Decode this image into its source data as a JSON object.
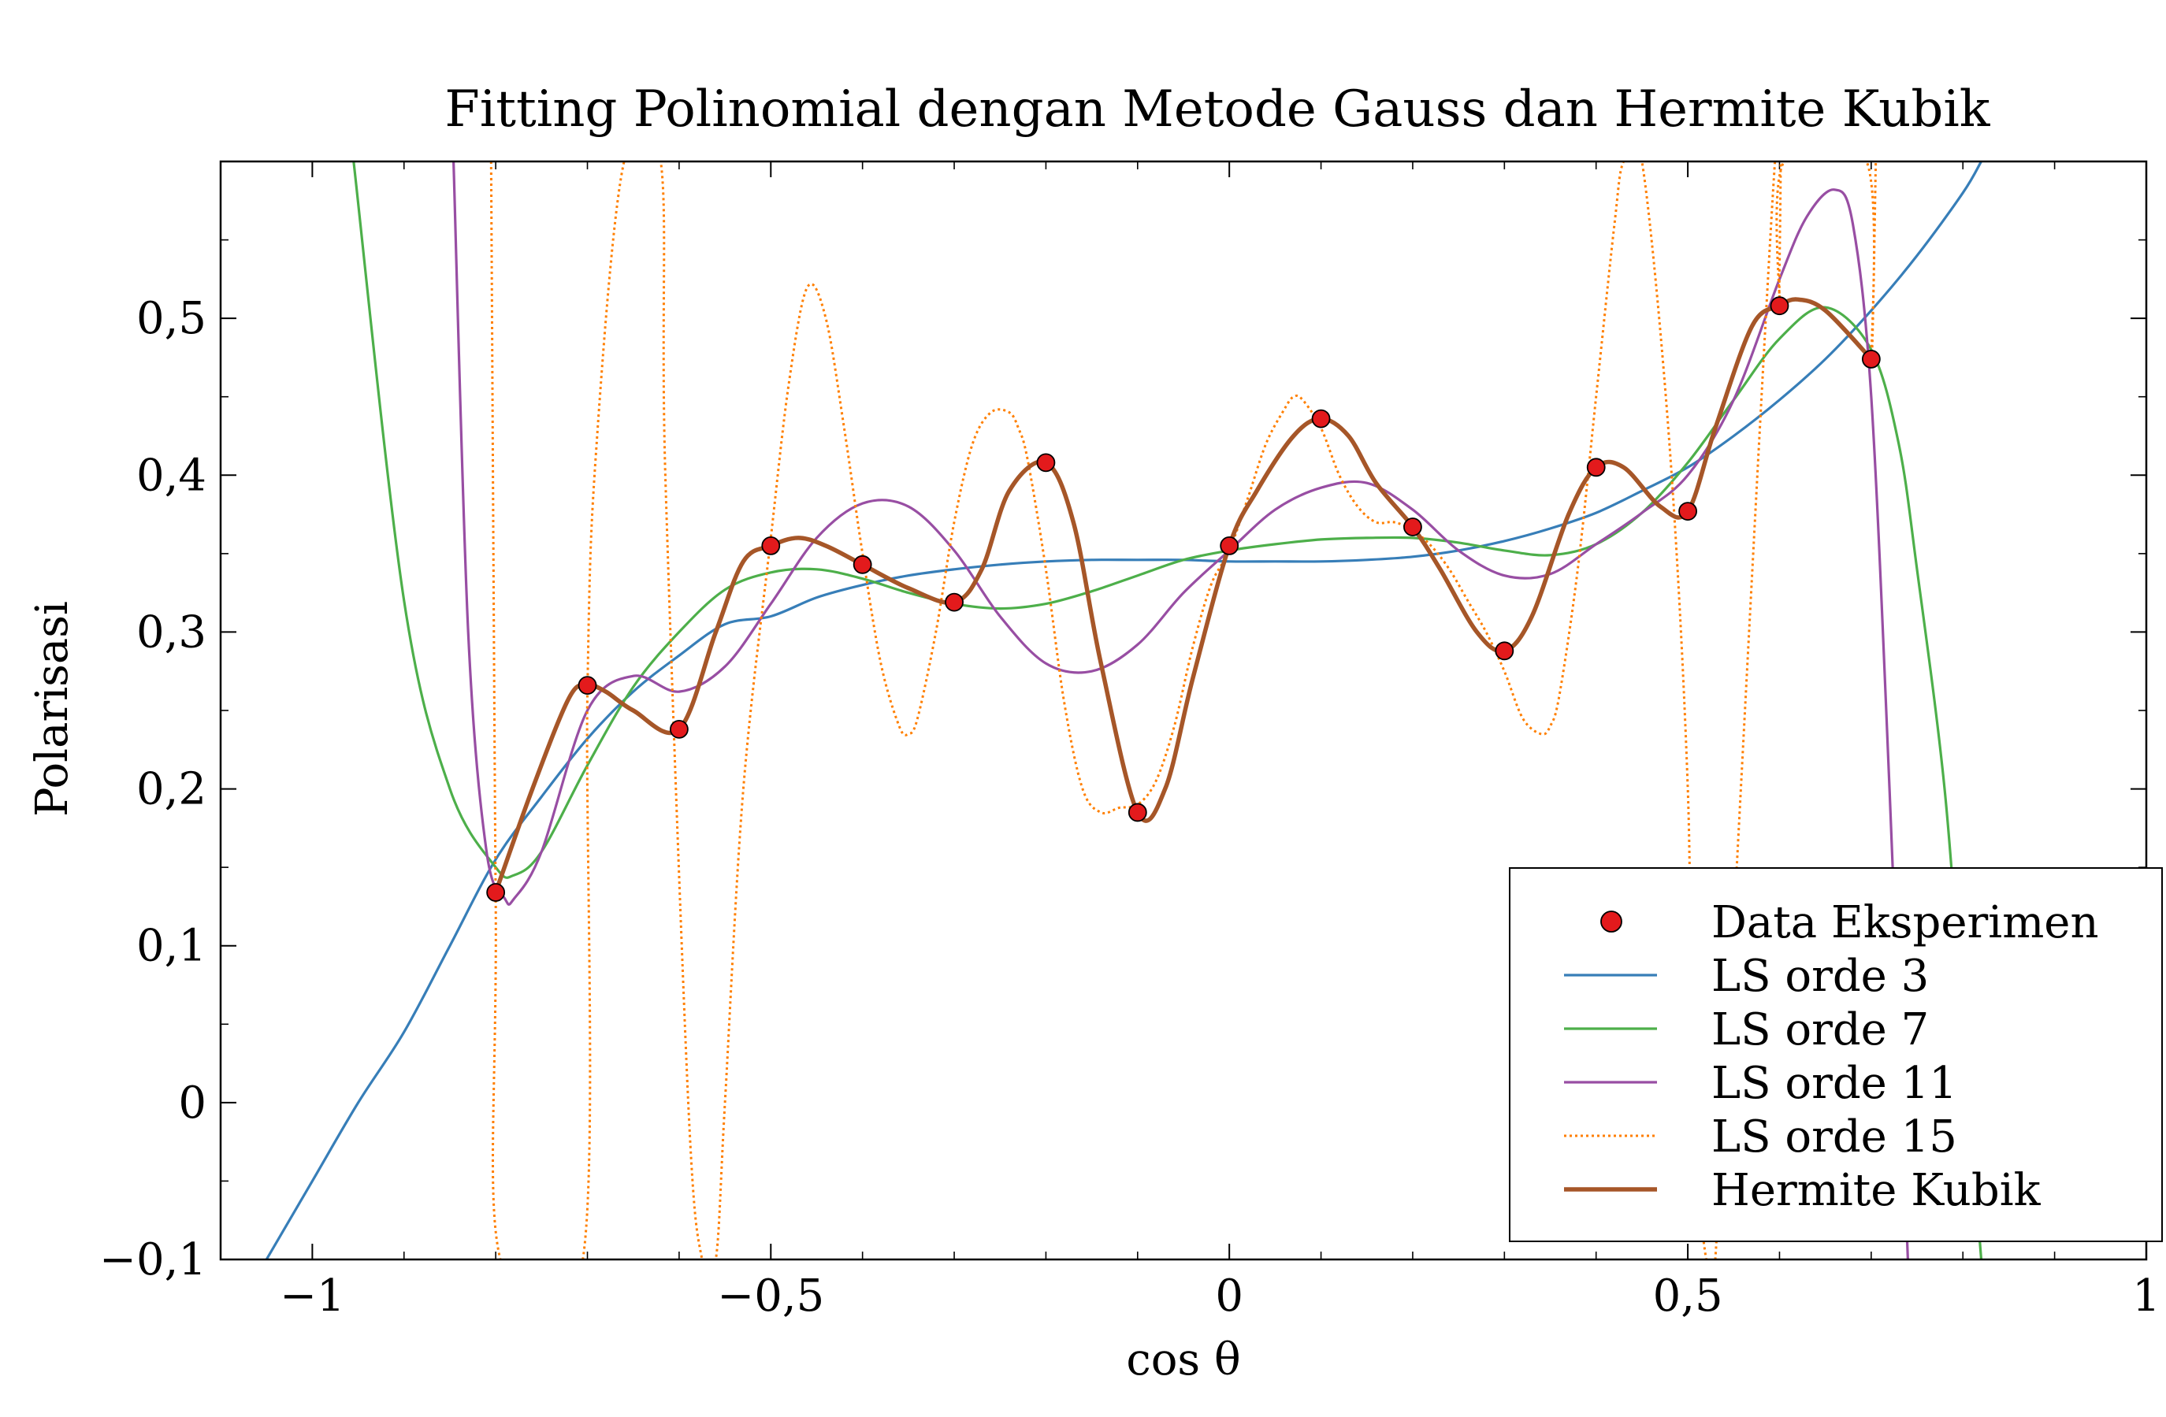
{
  "chart_data": {
    "type": "line",
    "title": "Fitting Polinomial dengan Metode Gauss dan Hermite Kubik",
    "xlabel": "cos θ",
    "ylabel": "Polarisasi",
    "xlim": [
      -1.1,
      1.0
    ],
    "ylim": [
      -0.1,
      0.6
    ],
    "xticks": [
      -1,
      -0.5,
      0,
      0.5,
      1
    ],
    "xtick_labels": [
      "−1",
      "−0,5",
      "0",
      "0,5",
      "1"
    ],
    "yticks": [
      -0.1,
      0,
      0.1,
      0.2,
      0.3,
      0.4,
      0.5
    ],
    "ytick_labels": [
      "−0,1",
      "0",
      "0,1",
      "0,2",
      "0,3",
      "0,4",
      "0,5"
    ],
    "grid": false,
    "legend_position": "lower-right",
    "data_points": {
      "name": "Data Eksperimen",
      "color": "#e31a1c",
      "x": [
        -0.8,
        -0.7,
        -0.6,
        -0.5,
        -0.4,
        -0.3,
        -0.2,
        -0.1,
        0.0,
        0.1,
        0.2,
        0.3,
        0.4,
        0.5,
        0.6,
        0.7
      ],
      "y": [
        0.134,
        0.266,
        0.238,
        0.355,
        0.343,
        0.319,
        0.408,
        0.185,
        0.355,
        0.436,
        0.367,
        0.288,
        0.405,
        0.377,
        0.508,
        0.474
      ]
    },
    "series": [
      {
        "name": "LS orde 3",
        "color": "#377eb8",
        "style": "solid",
        "x": [
          -1.05,
          -1.0,
          -0.95,
          -0.9,
          -0.85,
          -0.8,
          -0.75,
          -0.7,
          -0.65,
          -0.6,
          -0.55,
          -0.5,
          -0.45,
          -0.4,
          -0.35,
          -0.3,
          -0.25,
          -0.2,
          -0.15,
          -0.1,
          -0.05,
          0.0,
          0.05,
          0.1,
          0.15,
          0.2,
          0.25,
          0.3,
          0.35,
          0.4,
          0.45,
          0.5,
          0.55,
          0.6,
          0.65,
          0.7,
          0.75,
          0.8,
          0.82
        ],
        "y": [
          -0.1,
          -0.05,
          0.0,
          0.045,
          0.1,
          0.155,
          0.195,
          0.232,
          0.262,
          0.285,
          0.305,
          0.31,
          0.322,
          0.33,
          0.336,
          0.34,
          0.343,
          0.345,
          0.346,
          0.346,
          0.346,
          0.345,
          0.345,
          0.345,
          0.346,
          0.348,
          0.352,
          0.358,
          0.366,
          0.376,
          0.39,
          0.405,
          0.425,
          0.448,
          0.474,
          0.505,
          0.54,
          0.58,
          0.6
        ]
      },
      {
        "name": "LS orde 7",
        "color": "#4daf4a",
        "style": "solid",
        "x": [
          -0.955,
          -0.9,
          -0.85,
          -0.8,
          -0.78,
          -0.75,
          -0.7,
          -0.65,
          -0.6,
          -0.55,
          -0.5,
          -0.45,
          -0.4,
          -0.35,
          -0.3,
          -0.25,
          -0.2,
          -0.15,
          -0.1,
          -0.05,
          0.0,
          0.05,
          0.1,
          0.15,
          0.2,
          0.25,
          0.3,
          0.35,
          0.4,
          0.45,
          0.5,
          0.55,
          0.6,
          0.65,
          0.7,
          0.73,
          0.75,
          0.78,
          0.8,
          0.82
        ],
        "y": [
          0.6,
          0.32,
          0.2,
          0.15,
          0.145,
          0.16,
          0.215,
          0.265,
          0.3,
          0.327,
          0.338,
          0.34,
          0.334,
          0.325,
          0.318,
          0.315,
          0.318,
          0.326,
          0.336,
          0.346,
          0.352,
          0.356,
          0.359,
          0.36,
          0.36,
          0.357,
          0.352,
          0.349,
          0.356,
          0.376,
          0.408,
          0.448,
          0.487,
          0.507,
          0.48,
          0.42,
          0.34,
          0.2,
          0.05,
          -0.1
        ]
      },
      {
        "name": "LS orde 11",
        "color": "#984ea3",
        "style": "solid",
        "x": [
          -0.846,
          -0.83,
          -0.81,
          -0.79,
          -0.78,
          -0.75,
          -0.7,
          -0.65,
          -0.6,
          -0.55,
          -0.5,
          -0.45,
          -0.4,
          -0.35,
          -0.3,
          -0.25,
          -0.2,
          -0.15,
          -0.1,
          -0.05,
          0.0,
          0.05,
          0.1,
          0.15,
          0.2,
          0.25,
          0.3,
          0.35,
          0.4,
          0.45,
          0.5,
          0.55,
          0.6,
          0.63,
          0.66,
          0.68,
          0.7,
          0.72,
          0.74
        ],
        "y": [
          0.6,
          0.3,
          0.16,
          0.13,
          0.13,
          0.16,
          0.25,
          0.272,
          0.262,
          0.278,
          0.318,
          0.36,
          0.382,
          0.38,
          0.352,
          0.31,
          0.28,
          0.275,
          0.292,
          0.325,
          0.352,
          0.378,
          0.392,
          0.395,
          0.378,
          0.352,
          0.336,
          0.337,
          0.356,
          0.376,
          0.4,
          0.448,
          0.525,
          0.565,
          0.582,
          0.56,
          0.45,
          0.2,
          -0.1
        ]
      },
      {
        "name": "LS orde 15",
        "color": "#ff7f00",
        "style": "dotted",
        "x": [
          -0.805,
          -0.8,
          -0.795,
          -0.705,
          -0.7,
          -0.69,
          -0.66,
          -0.62,
          -0.615,
          -0.59,
          -0.575,
          -0.56,
          -0.55,
          -0.53,
          -0.5,
          -0.48,
          -0.46,
          -0.44,
          -0.42,
          -0.4,
          -0.38,
          -0.36,
          -0.35,
          -0.34,
          -0.32,
          -0.3,
          -0.28,
          -0.26,
          -0.24,
          -0.23,
          -0.22,
          -0.2,
          -0.18,
          -0.16,
          -0.14,
          -0.12,
          -0.1,
          -0.08,
          -0.06,
          -0.04,
          -0.02,
          0.0,
          0.02,
          0.04,
          0.06,
          0.07,
          0.08,
          0.1,
          0.12,
          0.14,
          0.16,
          0.18,
          0.2,
          0.22,
          0.24,
          0.26,
          0.28,
          0.3,
          0.32,
          0.34,
          0.35,
          0.36,
          0.38,
          0.4,
          0.42,
          0.43,
          0.45,
          0.48,
          0.5,
          0.505,
          0.52,
          0.53,
          0.595,
          0.6,
          0.605,
          0.695,
          0.7,
          0.705
        ],
        "y": [
          0.6,
          0.13,
          -0.1,
          -0.1,
          0.26,
          0.42,
          0.6,
          0.6,
          0.4,
          0.0,
          -0.1,
          -0.1,
          0.0,
          0.2,
          0.36,
          0.46,
          0.52,
          0.5,
          0.43,
          0.35,
          0.28,
          0.24,
          0.235,
          0.245,
          0.3,
          0.37,
          0.42,
          0.44,
          0.44,
          0.43,
          0.41,
          0.34,
          0.255,
          0.2,
          0.185,
          0.188,
          0.19,
          0.205,
          0.24,
          0.29,
          0.33,
          0.352,
          0.385,
          0.42,
          0.442,
          0.45,
          0.448,
          0.43,
          0.4,
          0.38,
          0.37,
          0.37,
          0.365,
          0.355,
          0.34,
          0.32,
          0.3,
          0.275,
          0.245,
          0.235,
          0.24,
          0.26,
          0.34,
          0.45,
          0.56,
          0.6,
          0.6,
          0.42,
          0.2,
          0.0,
          -0.1,
          -0.1,
          0.6,
          0.51,
          0.6,
          0.6,
          0.47,
          0.6
        ]
      },
      {
        "name": "Hermite Kubik",
        "color": "#a65628",
        "style": "solid-thick",
        "x": [
          -0.8,
          -0.76,
          -0.72,
          -0.7,
          -0.68,
          -0.65,
          -0.6,
          -0.56,
          -0.53,
          -0.5,
          -0.47,
          -0.44,
          -0.4,
          -0.35,
          -0.3,
          -0.27,
          -0.24,
          -0.2,
          -0.17,
          -0.14,
          -0.1,
          -0.07,
          -0.04,
          0.0,
          0.03,
          0.07,
          0.1,
          0.13,
          0.16,
          0.2,
          0.23,
          0.27,
          0.3,
          0.33,
          0.37,
          0.4,
          0.43,
          0.47,
          0.5,
          0.53,
          0.57,
          0.6,
          0.62,
          0.65,
          0.7
        ],
        "y": [
          0.134,
          0.2,
          0.258,
          0.266,
          0.262,
          0.25,
          0.238,
          0.3,
          0.345,
          0.355,
          0.36,
          0.355,
          0.343,
          0.328,
          0.319,
          0.34,
          0.39,
          0.408,
          0.37,
          0.28,
          0.185,
          0.2,
          0.27,
          0.355,
          0.39,
          0.425,
          0.436,
          0.425,
          0.395,
          0.367,
          0.34,
          0.3,
          0.288,
          0.31,
          0.375,
          0.405,
          0.405,
          0.38,
          0.377,
          0.43,
          0.495,
          0.508,
          0.512,
          0.505,
          0.474
        ]
      }
    ]
  }
}
